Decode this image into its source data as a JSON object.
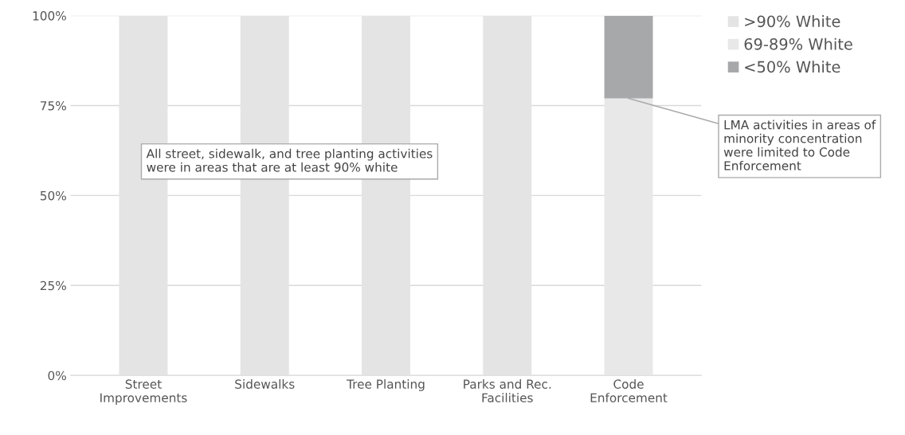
{
  "chart_data": {
    "type": "bar",
    "stacked": true,
    "categories": [
      "Street\nImprovements",
      "Sidewalks",
      "Tree Planting",
      "Parks and Rec.\nFacilities",
      "Code\nEnforcement"
    ],
    "series": [
      {
        "name": ">90% White",
        "color": "#e4e4e4",
        "values": [
          100,
          100,
          100,
          100,
          0
        ]
      },
      {
        "name": "69-89% White",
        "color": "#e8e8e8",
        "values": [
          0,
          0,
          0,
          0,
          77
        ]
      },
      {
        "name": "<50% White",
        "color": "#a6a8a9",
        "values": [
          0,
          0,
          0,
          0,
          23
        ]
      }
    ],
    "ylim": [
      0,
      100
    ],
    "yticks": [
      {
        "value": 0,
        "label": "0%"
      },
      {
        "value": 25,
        "label": "25%"
      },
      {
        "value": 50,
        "label": "50%"
      },
      {
        "value": 75,
        "label": "75%"
      },
      {
        "value": 100,
        "label": "100%"
      }
    ],
    "grid": "y",
    "legend": "top right",
    "annotations": [
      "All street, sidewalk, and tree planting activities were in areas that are at least 90% white",
      {
        "text": "LMA activities in areas of minority concentration were limited to Code Enforcement",
        "x": "Code\nEnforcement",
        "y": 77
      }
    ]
  }
}
